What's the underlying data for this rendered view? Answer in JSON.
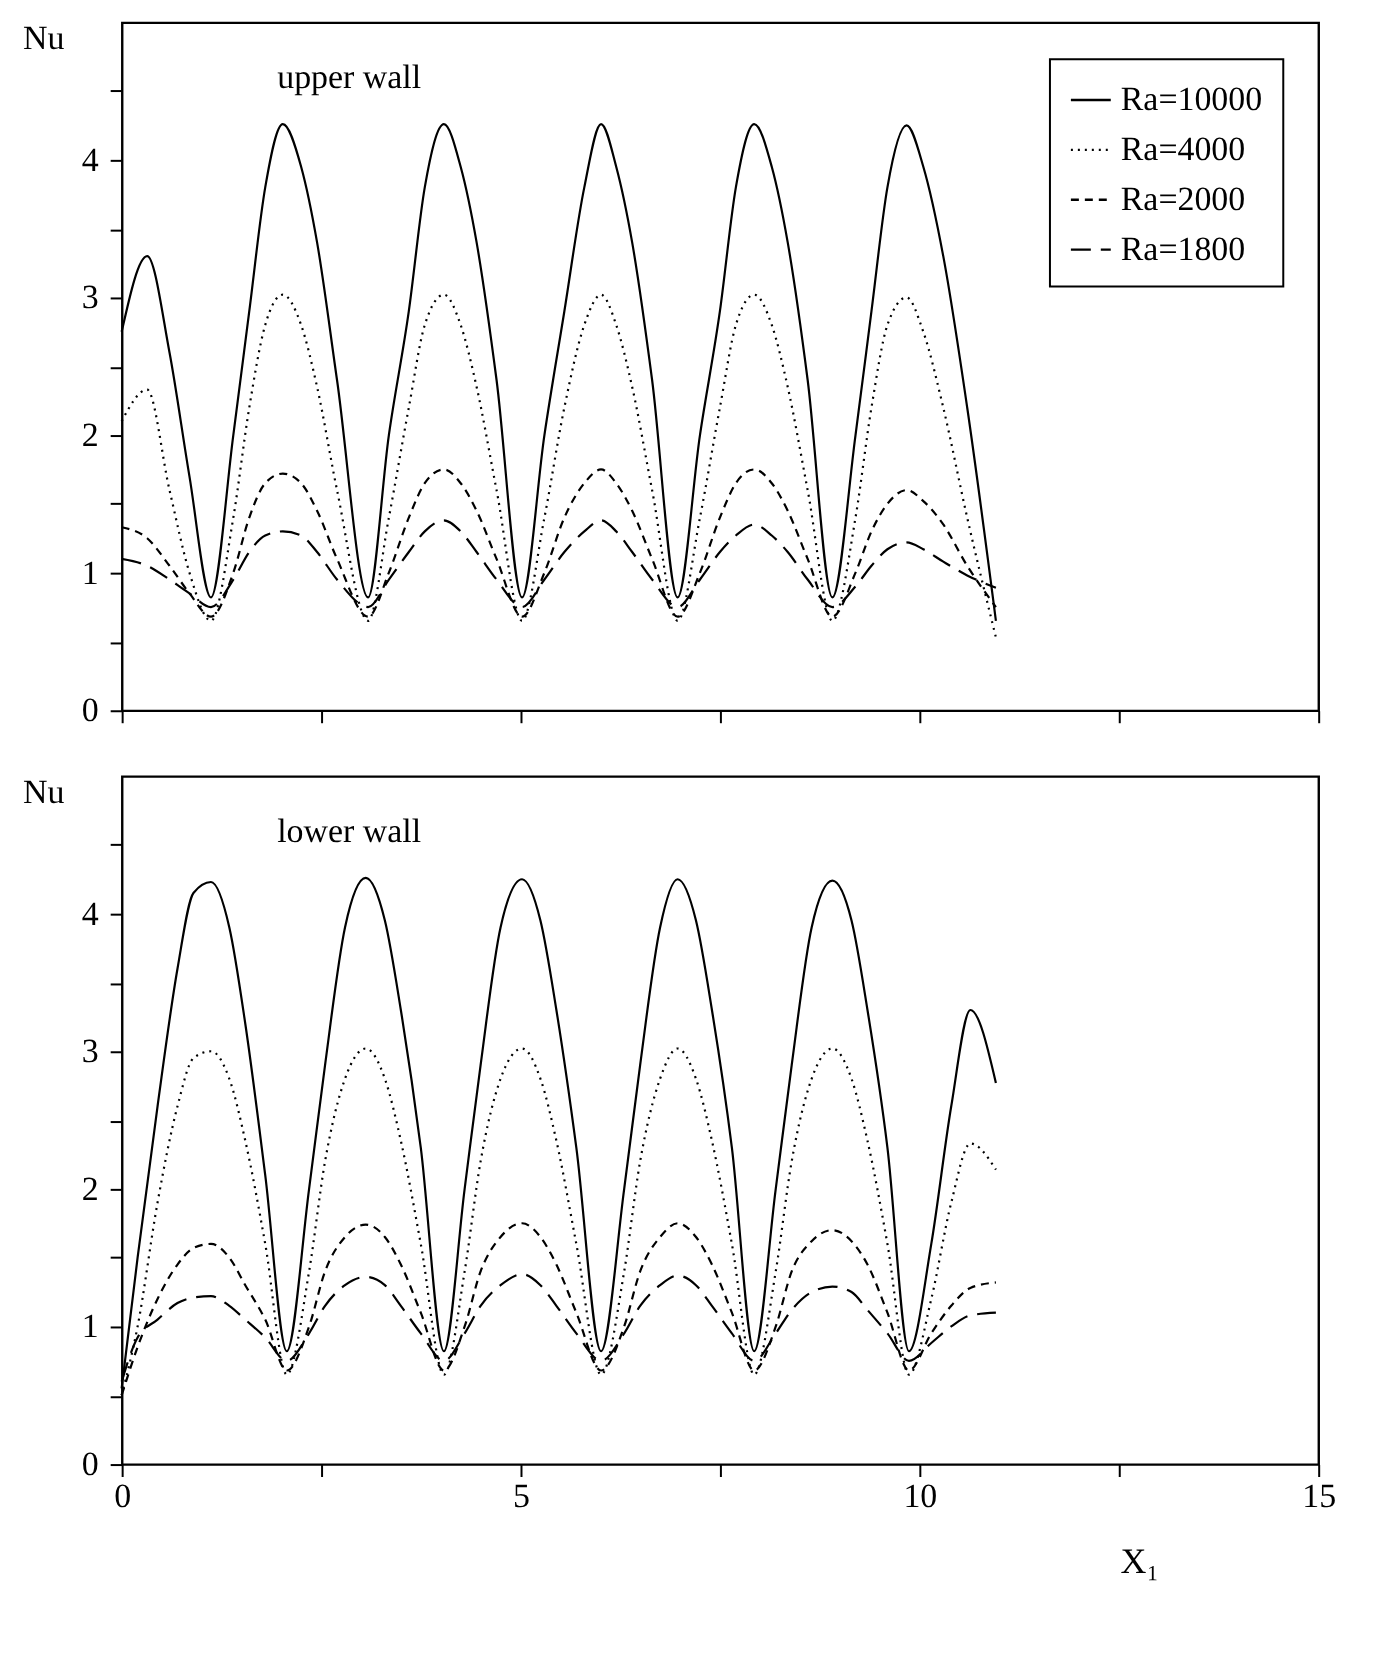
{
  "chart_data": [
    {
      "type": "line",
      "annotations": [
        "upper wall"
      ],
      "ylabel": "Nu",
      "xlim": [
        0,
        15
      ],
      "ylim": [
        0,
        5
      ],
      "xticks": [
        0,
        {
          "value": 2.5,
          "label": null
        },
        5,
        {
          "value": 7.5,
          "label": null
        },
        10,
        {
          "value": 12.5,
          "label": null
        },
        15
      ],
      "yticks": [
        0,
        {
          "value": 0.5,
          "label": null
        },
        1,
        {
          "value": 1.5,
          "label": null
        },
        2,
        {
          "value": 2.5,
          "label": null
        },
        3,
        {
          "value": 3.5,
          "label": null
        },
        4,
        {
          "value": 4.5,
          "label": null
        }
      ],
      "tick_labels": "y",
      "grid": false,
      "legend": "top right",
      "marker": "none",
      "x": [
        0,
        0.32,
        0.6,
        0.85,
        1.12,
        1.4,
        1.6,
        1.8,
        2.02,
        2.25,
        2.45,
        2.7,
        3.09,
        3.35,
        3.6,
        3.8,
        4.04,
        4.25,
        4.45,
        4.7,
        5.02,
        5.3,
        5.55,
        5.8,
        6.01,
        6.2,
        6.4,
        6.65,
        6.97,
        7.25,
        7.5,
        7.7,
        7.93,
        8.15,
        8.35,
        8.6,
        8.91,
        9.2,
        9.4,
        9.6,
        9.84,
        10.05,
        10.3,
        10.6,
        10.96
      ],
      "series": [
        {
          "name": "Ra=10000",
          "color": "#000000",
          "line_style": "solid",
          "values": [
            2.75,
            3.3,
            2.6,
            1.7,
            0.82,
            2.0,
            2.9,
            3.8,
            4.26,
            3.95,
            3.4,
            2.4,
            0.82,
            2.0,
            2.9,
            3.8,
            4.26,
            3.95,
            3.4,
            2.4,
            0.82,
            2.0,
            2.9,
            3.8,
            4.26,
            3.95,
            3.4,
            2.4,
            0.82,
            2.0,
            2.9,
            3.8,
            4.26,
            3.95,
            3.4,
            2.4,
            0.82,
            2.0,
            2.9,
            3.8,
            4.25,
            3.95,
            3.3,
            2.2,
            0.65
          ]
        },
        {
          "name": "Ra=4000",
          "color": "#000000",
          "line_style": "dotted",
          "values": [
            2.1,
            2.33,
            1.6,
            1.0,
            0.65,
            1.4,
            2.2,
            2.8,
            3.02,
            2.8,
            2.35,
            1.6,
            0.65,
            1.4,
            2.2,
            2.8,
            3.02,
            2.8,
            2.35,
            1.6,
            0.65,
            1.4,
            2.2,
            2.8,
            3.02,
            2.8,
            2.35,
            1.6,
            0.65,
            1.4,
            2.2,
            2.8,
            3.02,
            2.8,
            2.35,
            1.6,
            0.65,
            1.4,
            2.2,
            2.8,
            3.0,
            2.75,
            2.2,
            1.4,
            0.53
          ]
        },
        {
          "name": "Ra=2000",
          "color": "#000000",
          "line_style": "dashed",
          "values": [
            1.33,
            1.25,
            1.05,
            0.85,
            0.68,
            1.0,
            1.4,
            1.65,
            1.72,
            1.65,
            1.45,
            1.1,
            0.68,
            1.0,
            1.4,
            1.65,
            1.75,
            1.65,
            1.45,
            1.1,
            0.68,
            1.0,
            1.4,
            1.65,
            1.75,
            1.65,
            1.45,
            1.1,
            0.68,
            1.0,
            1.4,
            1.65,
            1.75,
            1.65,
            1.45,
            1.1,
            0.68,
            1.0,
            1.3,
            1.5,
            1.6,
            1.52,
            1.35,
            1.05,
            0.75
          ]
        },
        {
          "name": "Ra=1800",
          "color": "#000000",
          "line_style": "dashed",
          "values": [
            1.1,
            1.05,
            0.95,
            0.85,
            0.75,
            0.95,
            1.15,
            1.27,
            1.3,
            1.27,
            1.15,
            0.95,
            0.75,
            0.95,
            1.15,
            1.3,
            1.38,
            1.3,
            1.15,
            0.95,
            0.75,
            0.95,
            1.15,
            1.3,
            1.38,
            1.3,
            1.15,
            0.95,
            0.75,
            0.95,
            1.15,
            1.27,
            1.35,
            1.27,
            1.15,
            0.95,
            0.75,
            0.9,
            1.05,
            1.17,
            1.22,
            1.17,
            1.08,
            0.98,
            0.89
          ]
        }
      ]
    },
    {
      "type": "line",
      "annotations": [
        "lower wall"
      ],
      "ylabel": "Nu",
      "xlabel": "X₁",
      "xlim": [
        0,
        15
      ],
      "ylim": [
        0,
        5
      ],
      "xticks": [
        0,
        {
          "value": 2.5,
          "label": null
        },
        5,
        {
          "value": 7.5,
          "label": null
        },
        10,
        {
          "value": 12.5,
          "label": null
        },
        15
      ],
      "yticks": [
        0,
        {
          "value": 0.5,
          "label": null
        },
        1,
        {
          "value": 1.5,
          "label": null
        },
        2,
        {
          "value": 2.5,
          "label": null
        },
        3,
        {
          "value": 3.5,
          "label": null
        },
        4,
        {
          "value": 4.5,
          "label": null
        }
      ],
      "grid": false,
      "legend": "top right",
      "marker": "none",
      "x": [
        0,
        0.2,
        0.45,
        0.7,
        0.9,
        1.12,
        1.35,
        1.55,
        1.8,
        2.07,
        2.35,
        2.55,
        2.8,
        3.06,
        3.3,
        3.5,
        3.75,
        4.04,
        4.3,
        4.5,
        4.75,
        5.02,
        5.25,
        5.45,
        5.7,
        6.01,
        6.3,
        6.5,
        6.75,
        6.97,
        7.2,
        7.4,
        7.65,
        7.93,
        8.2,
        8.4,
        8.65,
        8.91,
        9.15,
        9.35,
        9.6,
        9.87,
        10.15,
        10.4,
        10.64,
        10.96
      ],
      "series": [
        {
          "name": "Ra=10000",
          "color": "#000000",
          "line_style": "solid",
          "values": [
            0.55,
            1.5,
            2.6,
            3.6,
            4.15,
            4.23,
            3.9,
            3.2,
            2.1,
            0.82,
            2.0,
            2.9,
            3.9,
            4.26,
            3.95,
            3.3,
            2.3,
            0.82,
            2.0,
            2.9,
            3.9,
            4.25,
            3.95,
            3.3,
            2.3,
            0.82,
            2.0,
            2.9,
            3.9,
            4.25,
            3.95,
            3.3,
            2.3,
            0.82,
            2.0,
            2.9,
            3.9,
            4.24,
            3.95,
            3.3,
            2.3,
            0.82,
            1.6,
            2.6,
            3.3,
            2.77
          ]
        },
        {
          "name": "Ra=4000",
          "color": "#000000",
          "line_style": "dotted",
          "values": [
            0.5,
            1.0,
            1.9,
            2.6,
            2.95,
            3.0,
            2.8,
            2.35,
            1.6,
            0.65,
            1.4,
            2.2,
            2.8,
            3.02,
            2.8,
            2.35,
            1.6,
            0.65,
            1.4,
            2.2,
            2.8,
            3.02,
            2.8,
            2.35,
            1.6,
            0.65,
            1.4,
            2.2,
            2.8,
            3.02,
            2.8,
            2.35,
            1.6,
            0.65,
            1.4,
            2.2,
            2.8,
            3.02,
            2.8,
            2.35,
            1.6,
            0.65,
            1.2,
            1.9,
            2.33,
            2.14
          ]
        },
        {
          "name": "Ra=2000",
          "color": "#000000",
          "line_style": "dashed",
          "values": [
            0.5,
            0.85,
            1.2,
            1.45,
            1.57,
            1.6,
            1.5,
            1.3,
            1.05,
            0.68,
            1.0,
            1.4,
            1.65,
            1.74,
            1.65,
            1.45,
            1.1,
            0.68,
            1.0,
            1.4,
            1.65,
            1.75,
            1.65,
            1.45,
            1.1,
            0.68,
            1.0,
            1.4,
            1.65,
            1.75,
            1.65,
            1.45,
            1.1,
            0.68,
            1.0,
            1.4,
            1.62,
            1.7,
            1.62,
            1.45,
            1.1,
            0.68,
            0.95,
            1.15,
            1.28,
            1.32
          ]
        },
        {
          "name": "Ra=1800",
          "color": "#000000",
          "line_style": "dashed",
          "values": [
            0.6,
            0.92,
            1.05,
            1.17,
            1.21,
            1.22,
            1.15,
            1.05,
            0.92,
            0.75,
            0.95,
            1.15,
            1.3,
            1.36,
            1.3,
            1.15,
            0.95,
            0.75,
            0.95,
            1.15,
            1.3,
            1.38,
            1.3,
            1.15,
            0.95,
            0.75,
            0.95,
            1.15,
            1.3,
            1.37,
            1.3,
            1.15,
            0.95,
            0.75,
            0.95,
            1.12,
            1.25,
            1.29,
            1.25,
            1.12,
            0.95,
            0.75,
            0.88,
            1.0,
            1.08,
            1.1
          ]
        }
      ]
    }
  ]
}
